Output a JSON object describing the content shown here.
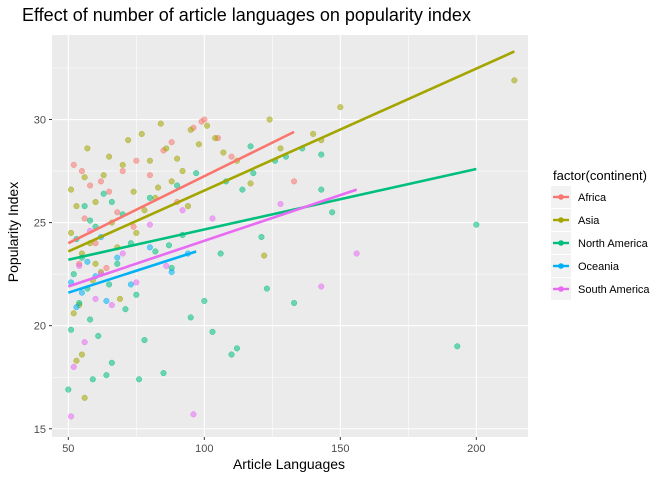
{
  "chart_data": {
    "type": "scatter",
    "title": "Effect of number of article languages on popularity index",
    "xlabel": "Article Languages",
    "ylabel": "Popularity Index",
    "xlim": [
      44,
      219
    ],
    "ylim": [
      14.6,
      34.1
    ],
    "x_ticks": [
      50,
      100,
      150,
      200
    ],
    "y_ticks": [
      15,
      20,
      25,
      30
    ],
    "grid": true,
    "legend": {
      "title": "factor(continent)",
      "position": "right"
    },
    "series": [
      {
        "name": "Africa",
        "color": "#F8766D",
        "trend": {
          "x": [
            50,
            133
          ],
          "y": [
            24.0,
            29.4
          ]
        },
        "points": [
          [
            52,
            27.8
          ],
          [
            55,
            27.5
          ],
          [
            58,
            26.8
          ],
          [
            62,
            27.0
          ],
          [
            65,
            26.5
          ],
          [
            70,
            27.5
          ],
          [
            75,
            28.0
          ],
          [
            80,
            27.3
          ],
          [
            85,
            28.5
          ],
          [
            88,
            28.9
          ],
          [
            96,
            29.6
          ],
          [
            99,
            29.9
          ],
          [
            100,
            30.0
          ],
          [
            105,
            29.1
          ],
          [
            133,
            27.0
          ],
          [
            56,
            25.2
          ],
          [
            60,
            24.0
          ],
          [
            68,
            25.5
          ],
          [
            54,
            23.0
          ],
          [
            64,
            22.8
          ],
          [
            74,
            24.8
          ],
          [
            90,
            26.0
          ],
          [
            110,
            28.2
          ]
        ]
      },
      {
        "name": "Asia",
        "color": "#A3A500",
        "trend": {
          "x": [
            50,
            214
          ],
          "y": [
            23.6,
            33.3
          ]
        },
        "points": [
          [
            51,
            26.6
          ],
          [
            51,
            24.5
          ],
          [
            53,
            25.8
          ],
          [
            54,
            21.0
          ],
          [
            55,
            23.5
          ],
          [
            56,
            27.2
          ],
          [
            57,
            28.6
          ],
          [
            58,
            24.0
          ],
          [
            60,
            26.0
          ],
          [
            62,
            22.6
          ],
          [
            63,
            27.3
          ],
          [
            65,
            28.2
          ],
          [
            66,
            25.0
          ],
          [
            68,
            23.8
          ],
          [
            70,
            27.8
          ],
          [
            72,
            29.0
          ],
          [
            74,
            26.5
          ],
          [
            75,
            24.5
          ],
          [
            77,
            29.3
          ],
          [
            78,
            25.6
          ],
          [
            80,
            28.0
          ],
          [
            82,
            26.2
          ],
          [
            84,
            29.8
          ],
          [
            86,
            28.6
          ],
          [
            88,
            27.0
          ],
          [
            90,
            28.1
          ],
          [
            92,
            27.5
          ],
          [
            95,
            29.5
          ],
          [
            98,
            28.8
          ],
          [
            101,
            29.7
          ],
          [
            104,
            29.1
          ],
          [
            107,
            28.4
          ],
          [
            112,
            28.0
          ],
          [
            117,
            26.9
          ],
          [
            122,
            23.4
          ],
          [
            124,
            30.0
          ],
          [
            128,
            28.6
          ],
          [
            140,
            29.3
          ],
          [
            143,
            29.0
          ],
          [
            150,
            30.6
          ],
          [
            214,
            31.9
          ],
          [
            56,
            16.5
          ],
          [
            53,
            18.3
          ],
          [
            59,
            22.2
          ],
          [
            69,
            21.3
          ],
          [
            83,
            26.7
          ],
          [
            94,
            25.8
          ],
          [
            60,
            23.0
          ],
          [
            52,
            20.6
          ],
          [
            55,
            18.6
          ]
        ]
      },
      {
        "name": "North America",
        "color": "#00BF7D",
        "trend": {
          "x": [
            50,
            200
          ],
          "y": [
            23.2,
            27.6
          ]
        },
        "points": [
          [
            50,
            16.9
          ],
          [
            51,
            19.8
          ],
          [
            52,
            22.5
          ],
          [
            53,
            24.2
          ],
          [
            55,
            23.3
          ],
          [
            56,
            25.8
          ],
          [
            57,
            21.8
          ],
          [
            58,
            20.3
          ],
          [
            60,
            24.8
          ],
          [
            61,
            19.5
          ],
          [
            63,
            26.4
          ],
          [
            65,
            22.0
          ],
          [
            66,
            18.2
          ],
          [
            68,
            23.0
          ],
          [
            70,
            25.4
          ],
          [
            71,
            20.8
          ],
          [
            73,
            24.0
          ],
          [
            75,
            21.5
          ],
          [
            78,
            19.3
          ],
          [
            80,
            26.2
          ],
          [
            82,
            23.6
          ],
          [
            85,
            17.7
          ],
          [
            88,
            22.8
          ],
          [
            90,
            26.8
          ],
          [
            92,
            24.4
          ],
          [
            95,
            20.4
          ],
          [
            97,
            27.4
          ],
          [
            100,
            21.2
          ],
          [
            103,
            19.7
          ],
          [
            106,
            23.5
          ],
          [
            108,
            27.0
          ],
          [
            110,
            18.6
          ],
          [
            112,
            18.9
          ],
          [
            114,
            26.6
          ],
          [
            117,
            28.7
          ],
          [
            118,
            27.4
          ],
          [
            121,
            24.3
          ],
          [
            123,
            21.8
          ],
          [
            126,
            28.0
          ],
          [
            130,
            28.2
          ],
          [
            133,
            21.1
          ],
          [
            136,
            28.6
          ],
          [
            143,
            28.3
          ],
          [
            143,
            26.6
          ],
          [
            147,
            25.5
          ],
          [
            193,
            19.0
          ],
          [
            200,
            24.9
          ],
          [
            54,
            21.1
          ],
          [
            59,
            17.4
          ],
          [
            64,
            17.6
          ],
          [
            76,
            17.4
          ],
          [
            87,
            23.9
          ],
          [
            58,
            25.1
          ],
          [
            66,
            26.0
          ]
        ]
      },
      {
        "name": "Oceania",
        "color": "#00B0F6",
        "trend": {
          "x": [
            50,
            97
          ],
          "y": [
            21.6,
            23.6
          ]
        },
        "points": [
          [
            51,
            22.1
          ],
          [
            53,
            20.9
          ],
          [
            55,
            21.6
          ],
          [
            57,
            23.1
          ],
          [
            60,
            22.4
          ],
          [
            64,
            21.2
          ],
          [
            68,
            23.3
          ],
          [
            73,
            22.0
          ],
          [
            80,
            23.8
          ],
          [
            88,
            22.6
          ],
          [
            94,
            23.5
          ],
          [
            62,
            24.3
          ]
        ]
      },
      {
        "name": "South America",
        "color": "#E76BF3",
        "trend": {
          "x": [
            50,
            156
          ],
          "y": [
            21.9,
            26.6
          ]
        },
        "points": [
          [
            51,
            15.6
          ],
          [
            52,
            18.0
          ],
          [
            54,
            22.9
          ],
          [
            56,
            19.2
          ],
          [
            58,
            24.6
          ],
          [
            62,
            22.5
          ],
          [
            66,
            21.0
          ],
          [
            70,
            23.5
          ],
          [
            75,
            22.1
          ],
          [
            80,
            24.9
          ],
          [
            86,
            22.9
          ],
          [
            92,
            25.6
          ],
          [
            96,
            15.7
          ],
          [
            103,
            25.2
          ],
          [
            128,
            25.9
          ],
          [
            143,
            21.9
          ],
          [
            156,
            23.5
          ],
          [
            60,
            21.3
          ]
        ]
      }
    ]
  }
}
